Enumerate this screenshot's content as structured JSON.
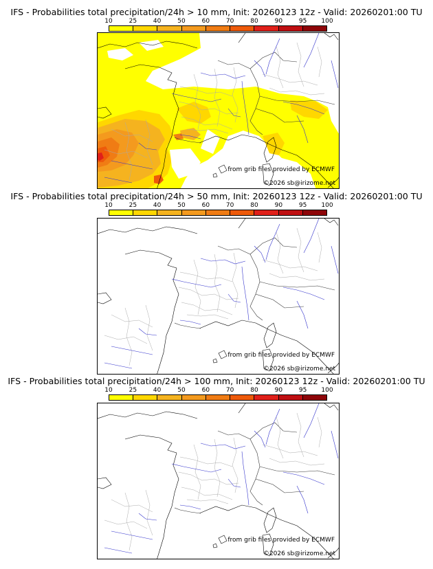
{
  "legend": {
    "levels": [
      "10",
      "25",
      "40",
      "50",
      "60",
      "70",
      "80",
      "90",
      "95",
      "100"
    ],
    "colors": [
      "#ffff00",
      "#ffd700",
      "#f5b31f",
      "#f49a1e",
      "#f07c14",
      "#ee5a0a",
      "#e0201a",
      "#bf0f12",
      "#8e0509",
      "#5a0000"
    ]
  },
  "panels": [
    {
      "title": "IFS - Probabilities total precipitation/24h > 10 mm, Init: 20260123 12z - Valid: 20260201:00 TU",
      "threshold_mm": 10,
      "has_precip": true
    },
    {
      "title": "IFS - Probabilities total precipitation/24h > 50 mm, Init: 20260123 12z - Valid: 20260201:00 TU",
      "threshold_mm": 50,
      "has_precip": false
    },
    {
      "title": "IFS - Probabilities total precipitation/24h > 100 mm, Init: 20260123 12z - Valid: 20260201:00 TU",
      "threshold_mm": 100,
      "has_precip": false
    }
  ],
  "credits": {
    "source": "from grib files provided by ECMWF",
    "author": "©2026 sb@irizome.net"
  }
}
